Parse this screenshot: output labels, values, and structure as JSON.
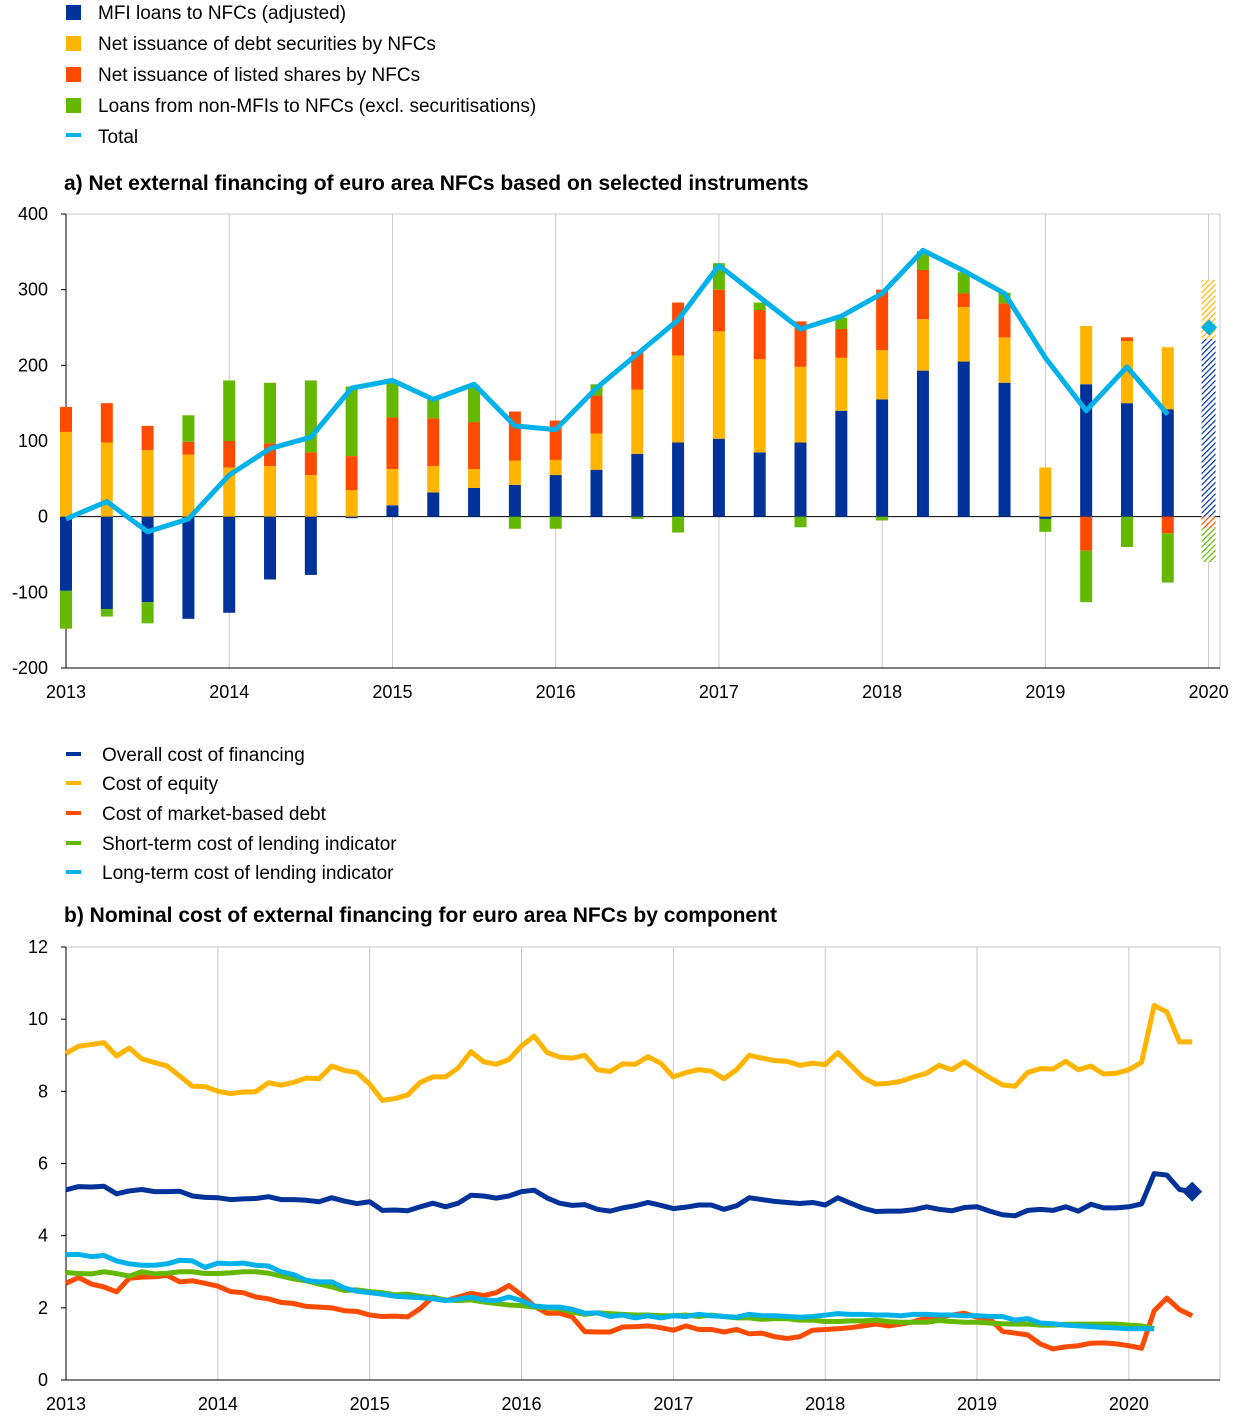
{
  "colors": {
    "mfi": "#003299",
    "debt": "#FFB400",
    "shares": "#FF4B00",
    "nonmfi": "#65B800",
    "total": "#00B1EA",
    "grid": "#c8c8c8",
    "axis": "#000000"
  },
  "chart_data": [
    {
      "type": "bar",
      "title": "a) Net external financing of euro area NFCs based on selected instruments",
      "xlabel": "",
      "ylabel": "",
      "ylim": [
        -200,
        400
      ],
      "yticks": [
        400,
        300,
        200,
        100,
        0,
        -100,
        -200
      ],
      "xticks": [
        "2013",
        "2014",
        "2015",
        "2016",
        "2017",
        "2018",
        "2019",
        "2020"
      ],
      "grid": "vertical",
      "stacked": true,
      "periods": [
        "2013 Q1",
        "2013 Q2",
        "2013 Q3",
        "2013 Q4",
        "2014 Q1",
        "2014 Q2",
        "2014 Q3",
        "2014 Q4",
        "2015 Q1",
        "2015 Q2",
        "2015 Q3",
        "2015 Q4",
        "2016 Q1",
        "2016 Q2",
        "2016 Q3",
        "2016 Q4",
        "2017 Q1",
        "2017 Q2",
        "2017 Q3",
        "2017 Q4",
        "2018 Q1",
        "2018 Q2",
        "2018 Q3",
        "2018 Q4",
        "2019 Q1",
        "2019 Q2",
        "2019 Q3",
        "2019 Q4"
      ],
      "x_year": [
        2013.0,
        2013.25,
        2013.5,
        2013.75,
        2014.0,
        2014.25,
        2014.5,
        2014.75,
        2015.0,
        2015.25,
        2015.5,
        2015.75,
        2016.0,
        2016.25,
        2016.5,
        2016.75,
        2017.0,
        2017.25,
        2017.5,
        2017.75,
        2018.0,
        2018.25,
        2018.5,
        2018.75,
        2019.0,
        2019.25,
        2019.5,
        2019.75
      ],
      "series": [
        {
          "name": "MFI loans to NFCs (adjusted)",
          "key": "mfi",
          "values": [
            -98,
            -122,
            -113,
            -135,
            -127,
            -83,
            -77,
            -2,
            15,
            32,
            38,
            42,
            55,
            62,
            83,
            98,
            103,
            85,
            98,
            140,
            155,
            193,
            205,
            177,
            -3,
            175,
            150,
            142
          ]
        },
        {
          "name": "Net issuance of debt securities by NFCs",
          "key": "debt",
          "values": [
            112,
            98,
            88,
            82,
            65,
            67,
            55,
            35,
            48,
            35,
            25,
            32,
            20,
            48,
            85,
            115,
            142,
            123,
            100,
            70,
            65,
            68,
            72,
            60,
            65,
            77,
            82,
            82
          ]
        },
        {
          "name": "Net issuance of listed shares by NFCs",
          "key": "shares",
          "values": [
            33,
            52,
            32,
            17,
            35,
            30,
            30,
            45,
            68,
            63,
            62,
            65,
            52,
            50,
            50,
            70,
            55,
            65,
            60,
            38,
            80,
            65,
            18,
            45,
            0,
            -45,
            5,
            -22
          ]
        },
        {
          "name": "Loans from non-MFIs to NFCs (excl. securitisations)",
          "key": "nonmfi",
          "values": [
            -50,
            -10,
            -28,
            35,
            80,
            80,
            95,
            92,
            48,
            28,
            48,
            -16,
            -16,
            15,
            -3,
            -21,
            35,
            10,
            -14,
            15,
            -5,
            25,
            28,
            14,
            -17,
            -68,
            -40,
            -65
          ]
        }
      ],
      "total": {
        "name": "Total",
        "values": [
          -3,
          20,
          -20,
          -3,
          55,
          90,
          105,
          170,
          180,
          155,
          175,
          120,
          115,
          170,
          215,
          260,
          332,
          290,
          248,
          265,
          295,
          352,
          325,
          295,
          210,
          140,
          198,
          135
        ]
      },
      "estimate": {
        "x_year": 2020.0,
        "value": 250,
        "range": [
          -60,
          313
        ]
      }
    },
    {
      "type": "line",
      "title": "b) Nominal cost of external financing for euro area NFCs by component",
      "xlabel": "",
      "ylabel": "",
      "ylim": [
        0,
        12
      ],
      "yticks": [
        12,
        10,
        8,
        6,
        4,
        2,
        0
      ],
      "xticks": [
        "2013",
        "2014",
        "2015",
        "2016",
        "2017",
        "2018",
        "2019",
        "2020"
      ],
      "grid": "vertical",
      "x_start": "2013-01",
      "frequency": "monthly",
      "series": [
        {
          "name": "Overall cost of financing",
          "key": "overall",
          "values": [
            5.27,
            5.36,
            5.35,
            5.37,
            5.16,
            5.24,
            5.28,
            5.22,
            5.22,
            5.23,
            5.1,
            5.06,
            5.05,
            5.0,
            5.02,
            5.03,
            5.08,
            5.0,
            5.0,
            4.98,
            4.94,
            5.05,
            4.96,
            4.89,
            4.94,
            4.7,
            4.71,
            4.69,
            4.8,
            4.9,
            4.8,
            4.9,
            5.12,
            5.1,
            5.04,
            5.1,
            5.22,
            5.26,
            5.05,
            4.9,
            4.84,
            4.86,
            4.73,
            4.68,
            4.77,
            4.83,
            4.92,
            4.84,
            4.75,
            4.79,
            4.85,
            4.85,
            4.73,
            4.83,
            5.05,
            5.0,
            4.95,
            4.92,
            4.89,
            4.92,
            4.85,
            5.05,
            4.9,
            4.76,
            4.67,
            4.68,
            4.68,
            4.72,
            4.8,
            4.73,
            4.69,
            4.78,
            4.8,
            4.68,
            4.58,
            4.55,
            4.7,
            4.73,
            4.7,
            4.8,
            4.68,
            4.87,
            4.77,
            4.77,
            4.8,
            4.88,
            5.72,
            5.68,
            5.28,
            5.22
          ],
          "marker_last": true
        },
        {
          "name": "Cost of equity",
          "key": "equity",
          "values": [
            9.05,
            9.25,
            9.3,
            9.35,
            8.98,
            9.2,
            8.9,
            8.8,
            8.7,
            8.42,
            8.14,
            8.13,
            8.0,
            7.94,
            7.98,
            7.99,
            8.24,
            8.17,
            8.25,
            8.37,
            8.35,
            8.7,
            8.58,
            8.52,
            8.2,
            7.75,
            7.8,
            7.9,
            8.25,
            8.4,
            8.4,
            8.65,
            9.1,
            8.82,
            8.75,
            8.88,
            9.26,
            9.53,
            9.08,
            8.95,
            8.92,
            9.0,
            8.6,
            8.55,
            8.76,
            8.75,
            8.96,
            8.78,
            8.4,
            8.52,
            8.6,
            8.56,
            8.35,
            8.6,
            9.0,
            8.92,
            8.85,
            8.83,
            8.72,
            8.78,
            8.74,
            9.07,
            8.73,
            8.38,
            8.2,
            8.22,
            8.28,
            8.4,
            8.5,
            8.72,
            8.6,
            8.82,
            8.6,
            8.38,
            8.18,
            8.14,
            8.52,
            8.63,
            8.62,
            8.83,
            8.6,
            8.7,
            8.48,
            8.5,
            8.6,
            8.8,
            10.38,
            10.2,
            9.37,
            9.37
          ]
        },
        {
          "name": "Cost of market-based debt",
          "key": "market_debt",
          "values": [
            2.68,
            2.84,
            2.66,
            2.58,
            2.44,
            2.82,
            2.85,
            2.86,
            2.9,
            2.72,
            2.75,
            2.68,
            2.6,
            2.45,
            2.42,
            2.3,
            2.25,
            2.15,
            2.12,
            2.04,
            2.02,
            2.0,
            1.92,
            1.9,
            1.8,
            1.76,
            1.77,
            1.75,
            1.98,
            2.3,
            2.2,
            2.3,
            2.4,
            2.34,
            2.42,
            2.62,
            2.36,
            2.05,
            1.85,
            1.85,
            1.75,
            1.34,
            1.33,
            1.33,
            1.47,
            1.48,
            1.5,
            1.45,
            1.38,
            1.5,
            1.4,
            1.4,
            1.33,
            1.4,
            1.28,
            1.3,
            1.2,
            1.15,
            1.2,
            1.38,
            1.4,
            1.42,
            1.45,
            1.5,
            1.55,
            1.5,
            1.55,
            1.62,
            1.72,
            1.75,
            1.8,
            1.85,
            1.74,
            1.7,
            1.35,
            1.3,
            1.25,
            1.0,
            0.86,
            0.92,
            0.95,
            1.02,
            1.03,
            1.0,
            0.95,
            0.88,
            1.92,
            2.27,
            1.95,
            1.78
          ]
        },
        {
          "name": "Short-term cost of lending indicator",
          "key": "short_term",
          "values": [
            2.98,
            2.95,
            2.94,
            3.0,
            2.95,
            2.88,
            3.0,
            2.94,
            2.96,
            3.0,
            3.0,
            2.95,
            2.95,
            2.97,
            3.0,
            3.0,
            2.96,
            2.88,
            2.8,
            2.75,
            2.66,
            2.58,
            2.48,
            2.5,
            2.45,
            2.42,
            2.36,
            2.38,
            2.32,
            2.28,
            2.22,
            2.2,
            2.22,
            2.16,
            2.12,
            2.08,
            2.06,
            2.02,
            2.0,
            1.98,
            1.88,
            1.82,
            1.86,
            1.84,
            1.82,
            1.8,
            1.8,
            1.78,
            1.78,
            1.8,
            1.76,
            1.8,
            1.76,
            1.72,
            1.72,
            1.68,
            1.7,
            1.7,
            1.66,
            1.66,
            1.62,
            1.62,
            1.64,
            1.64,
            1.66,
            1.62,
            1.6,
            1.6,
            1.6,
            1.65,
            1.62,
            1.6,
            1.6,
            1.58,
            1.56,
            1.55,
            1.55,
            1.52,
            1.52,
            1.54,
            1.55,
            1.55,
            1.55,
            1.55,
            1.52,
            1.5,
            1.43
          ]
        },
        {
          "name": "Long-term cost of lending indicator",
          "key": "long_term",
          "values": [
            3.47,
            3.48,
            3.42,
            3.45,
            3.3,
            3.22,
            3.18,
            3.18,
            3.22,
            3.32,
            3.3,
            3.12,
            3.24,
            3.22,
            3.24,
            3.18,
            3.16,
            3.0,
            2.92,
            2.76,
            2.72,
            2.72,
            2.55,
            2.46,
            2.42,
            2.38,
            2.32,
            2.3,
            2.28,
            2.25,
            2.2,
            2.24,
            2.3,
            2.22,
            2.2,
            2.3,
            2.2,
            2.05,
            2.02,
            2.02,
            1.96,
            1.85,
            1.86,
            1.76,
            1.8,
            1.72,
            1.78,
            1.72,
            1.78,
            1.76,
            1.82,
            1.78,
            1.76,
            1.74,
            1.82,
            1.78,
            1.78,
            1.76,
            1.74,
            1.76,
            1.8,
            1.84,
            1.82,
            1.82,
            1.8,
            1.8,
            1.78,
            1.82,
            1.82,
            1.8,
            1.8,
            1.78,
            1.78,
            1.76,
            1.76,
            1.66,
            1.7,
            1.58,
            1.56,
            1.52,
            1.5,
            1.48,
            1.46,
            1.44,
            1.42,
            1.42,
            1.42
          ]
        }
      ]
    }
  ]
}
